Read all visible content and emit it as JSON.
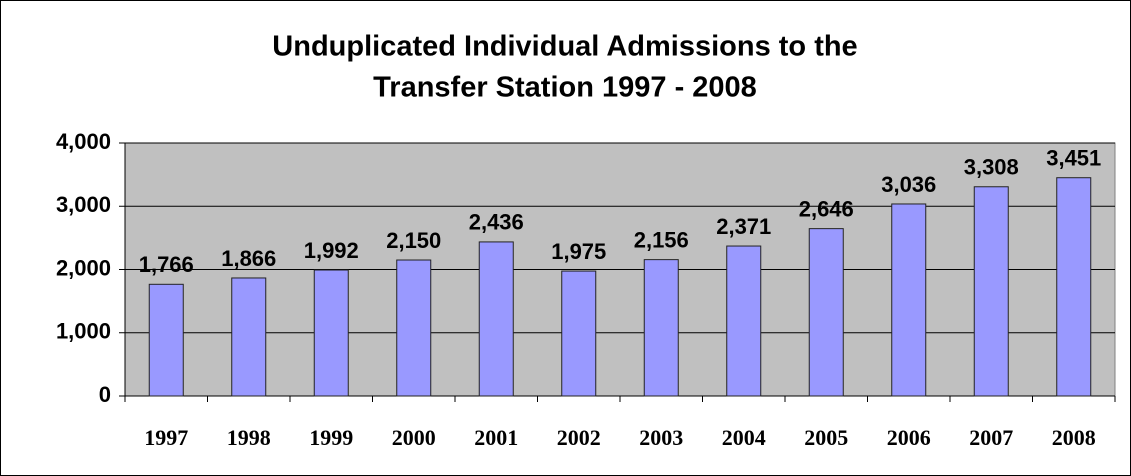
{
  "chart_data": {
    "type": "bar",
    "title": [
      "Unduplicated Individual Admissions to the",
      "Transfer Station 1997 - 2008"
    ],
    "categories": [
      "1997",
      "1998",
      "1999",
      "2000",
      "2001",
      "2002",
      "2003",
      "2004",
      "2005",
      "2006",
      "2007",
      "2008"
    ],
    "values": [
      1766,
      1866,
      1992,
      2150,
      2436,
      1975,
      2156,
      2371,
      2646,
      3036,
      3308,
      3451
    ],
    "value_labels": [
      "1,766",
      "1,866",
      "1,992",
      "2,150",
      "2,436",
      "1,975",
      "2,156",
      "2,371",
      "2,646",
      "3,036",
      "3,308",
      "3,451"
    ],
    "color": "#9999ff",
    "ylim": [
      0,
      4000
    ],
    "yticks": [
      0,
      {
        "value": 1000,
        "label": "1,000"
      },
      {
        "value": 2000,
        "label": "2,000"
      },
      {
        "value": 3000,
        "label": "3,000"
      },
      {
        "value": 4000,
        "label": "4,000"
      }
    ],
    "grid": true
  }
}
